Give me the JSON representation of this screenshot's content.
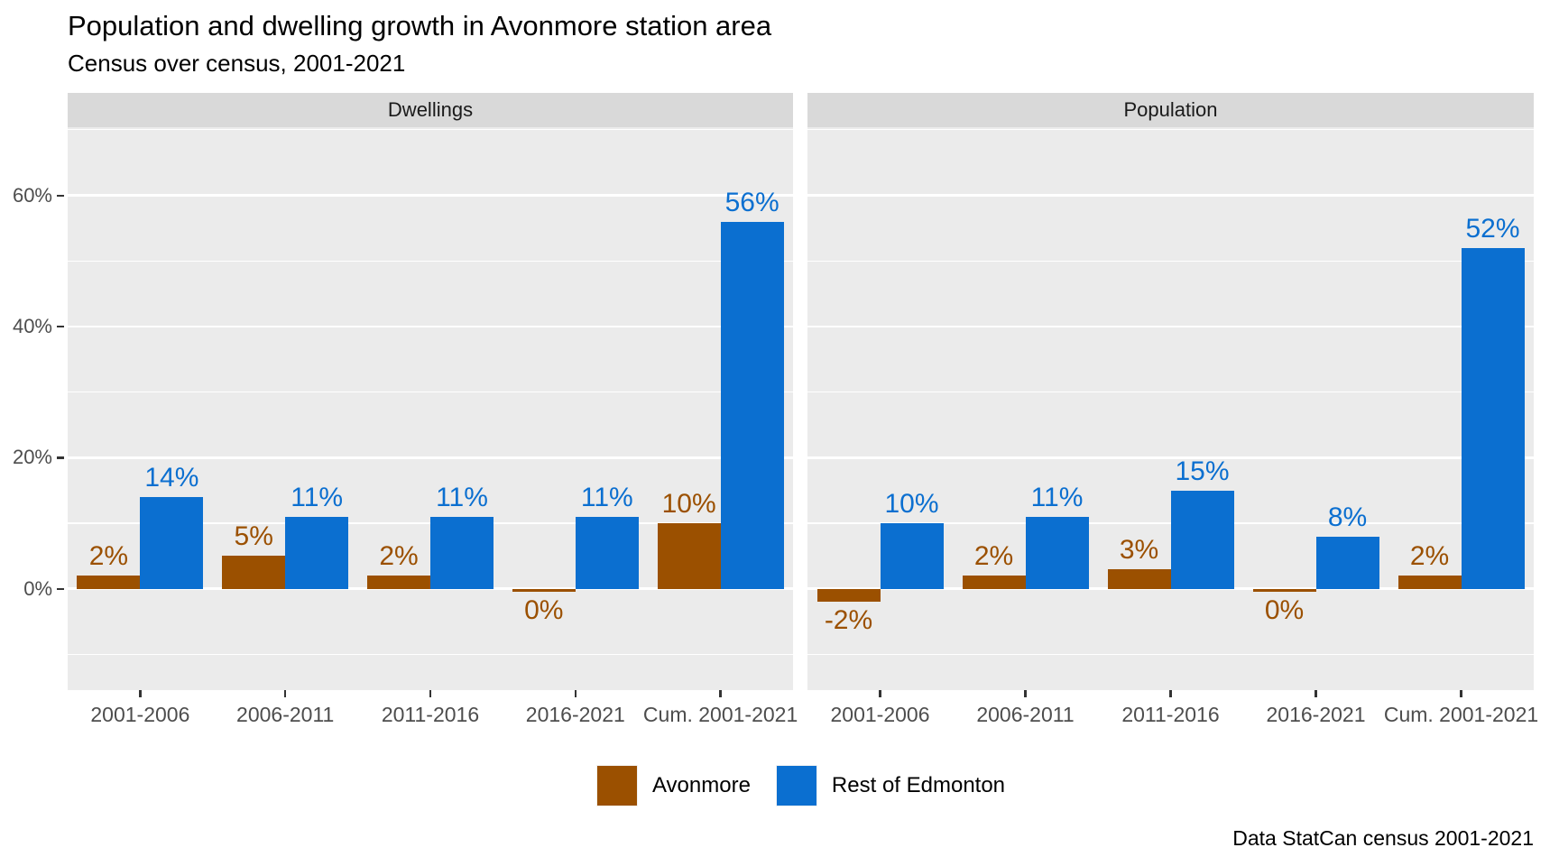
{
  "title": "Population and dwelling growth in Avonmore station area",
  "subtitle": "Census over census, 2001-2021",
  "caption": "Data StatCan census 2001-2021",
  "legend": {
    "items": [
      {
        "label": "Avonmore",
        "color": "#9B5000"
      },
      {
        "label": "Rest of Edmonton",
        "color": "#0B6FD0"
      }
    ]
  },
  "colors": {
    "avonmore": "#9B5000",
    "rest_of_edmonton": "#0B6FD0",
    "panel_background": "#EBEBEB",
    "strip_background": "#D9D9D9",
    "gridline": "#FFFFFF",
    "axis_text": "#4D4D4D"
  },
  "chart_data": {
    "type": "bar",
    "categories": [
      "2001-2006",
      "2006-2011",
      "2011-2016",
      "2016-2021",
      "Cum. 2001-2021"
    ],
    "facets": [
      {
        "label": "Dwellings",
        "series": [
          {
            "name": "Avonmore",
            "values": [
              2,
              5,
              2,
              0,
              10
            ],
            "labels": [
              "2%",
              "5%",
              "2%",
              "0%",
              "10%"
            ]
          },
          {
            "name": "Rest of Edmonton",
            "values": [
              14,
              11,
              11,
              11,
              56
            ],
            "labels": [
              "14%",
              "11%",
              "11%",
              "11%",
              "56%"
            ]
          }
        ]
      },
      {
        "label": "Population",
        "series": [
          {
            "name": "Avonmore",
            "values": [
              -2,
              2,
              3,
              0,
              2
            ],
            "labels": [
              "-2%",
              "2%",
              "3%",
              "0%",
              "2%"
            ]
          },
          {
            "name": "Rest of Edmonton",
            "values": [
              10,
              11,
              15,
              8,
              52
            ],
            "labels": [
              "10%",
              "11%",
              "15%",
              "8%",
              "52%"
            ]
          }
        ]
      }
    ],
    "y_axis": {
      "ticks": [
        {
          "value": 0,
          "label": "0%"
        },
        {
          "value": 20,
          "label": "20%"
        },
        {
          "value": 40,
          "label": "40%"
        },
        {
          "value": 60,
          "label": "60%"
        }
      ],
      "minor_ticks": [
        -10,
        10,
        30,
        50,
        70
      ],
      "ylim": [
        -15.4,
        70.6
      ]
    },
    "xlabel": "",
    "ylabel": "",
    "grid": true,
    "legend_position": "bottom"
  }
}
